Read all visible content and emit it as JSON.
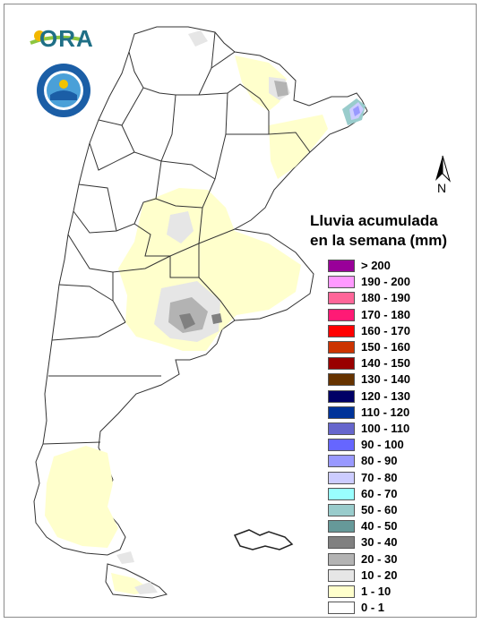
{
  "logo": {
    "text": "ORA"
  },
  "north_label": "N",
  "legend": {
    "title_line1": "Lluvia acumulada",
    "title_line2": "en la semana (mm)",
    "items": [
      {
        "label": "> 200",
        "color": "#990099"
      },
      {
        "label": "190 - 200",
        "color": "#ff99ff"
      },
      {
        "label": "180 - 190",
        "color": "#ff6699"
      },
      {
        "label": "170 - 180",
        "color": "#ff1a75"
      },
      {
        "label": "160 - 170",
        "color": "#ff0000"
      },
      {
        "label": "150 - 160",
        "color": "#cc3300"
      },
      {
        "label": "140 - 150",
        "color": "#990000"
      },
      {
        "label": "130 - 140",
        "color": "#663300"
      },
      {
        "label": "120 - 130",
        "color": "#000066"
      },
      {
        "label": "110 - 120",
        "color": "#003399"
      },
      {
        "label": "100 - 110",
        "color": "#6666cc"
      },
      {
        "label": "90 - 100",
        "color": "#6666ff"
      },
      {
        "label": "80 - 90",
        "color": "#9999ff"
      },
      {
        "label": "70 - 80",
        "color": "#ccccff"
      },
      {
        "label": "60 - 70",
        "color": "#99ffff"
      },
      {
        "label": "50 - 60",
        "color": "#99cccc"
      },
      {
        "label": "40 - 50",
        "color": "#669999"
      },
      {
        "label": "30 - 40",
        "color": "#808080"
      },
      {
        "label": "20 - 30",
        "color": "#b3b3b3"
      },
      {
        "label": "10 - 20",
        "color": "#e6e6e6"
      },
      {
        "label": "1 - 10",
        "color": "#ffffcc"
      },
      {
        "label": "0 - 1",
        "color": "#ffffff"
      }
    ]
  }
}
